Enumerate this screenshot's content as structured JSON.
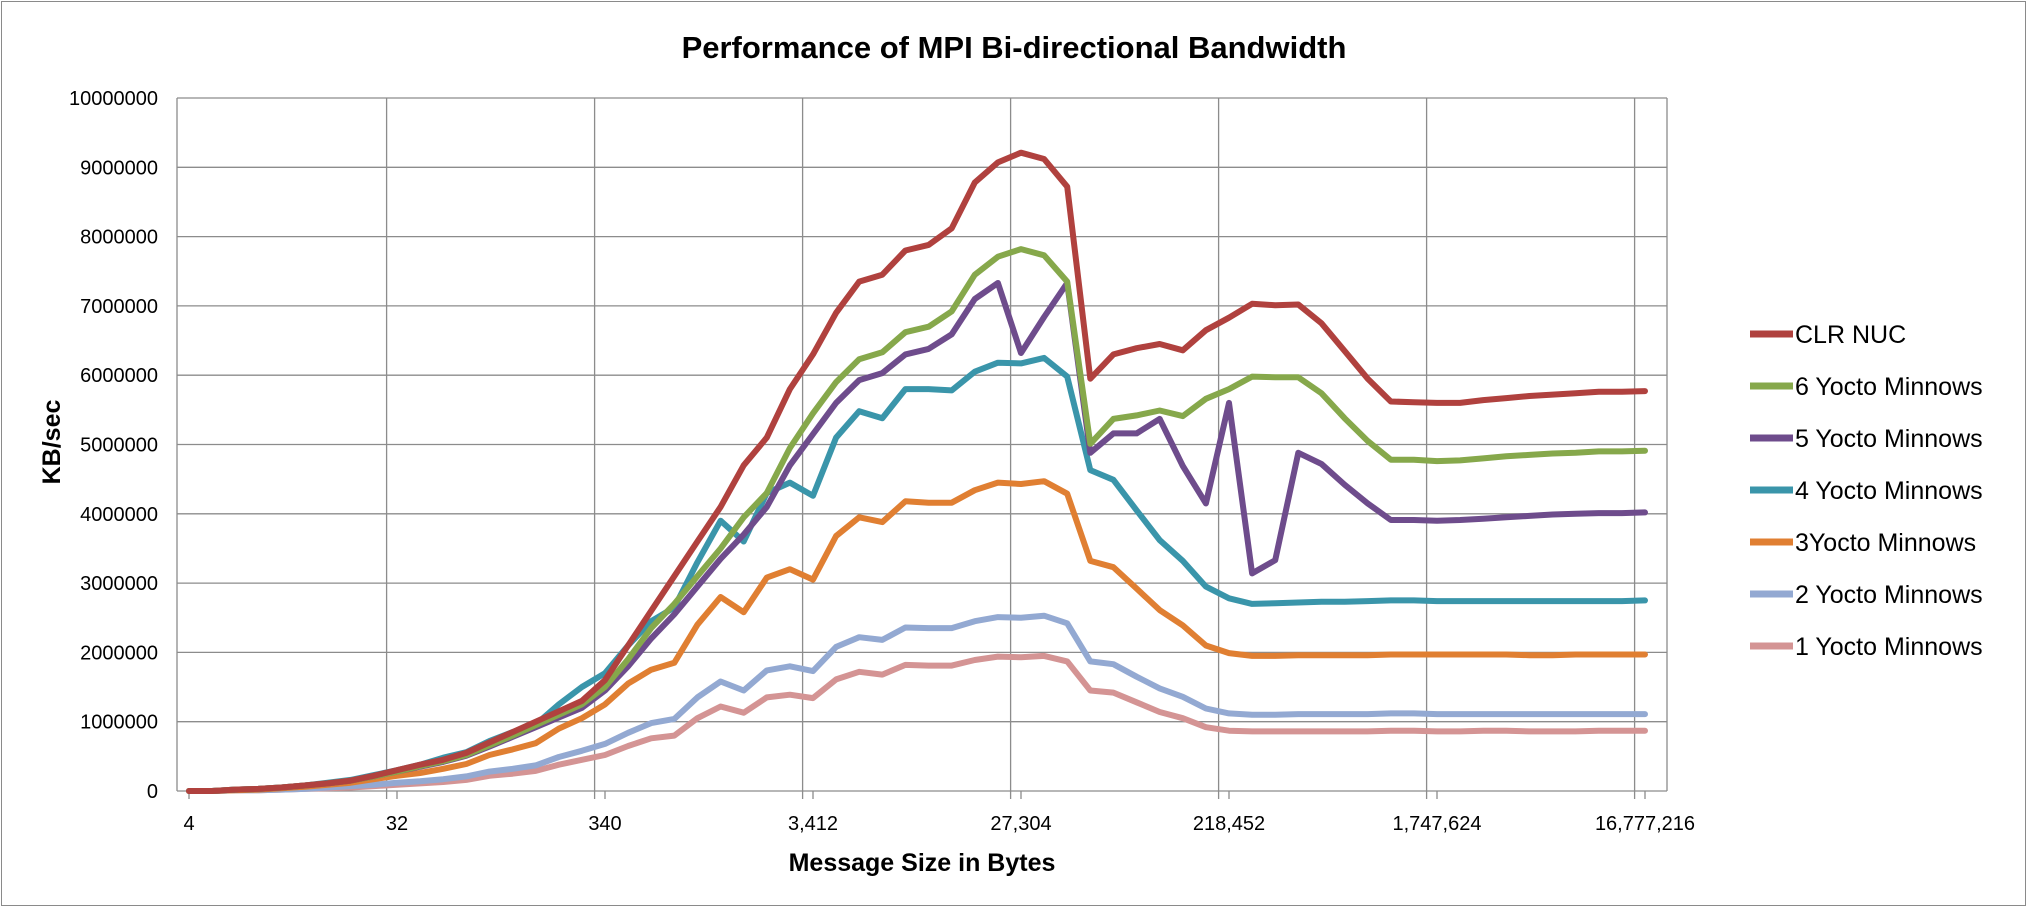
{
  "chart_data": {
    "type": "line",
    "title": "Performance of MPI Bi-directional Bandwidth",
    "xlabel": "Message Size in Bytes",
    "ylabel": "KB/sec",
    "ylim": [
      0,
      10000000
    ],
    "yticks": [
      "0",
      "1000000",
      "2000000",
      "3000000",
      "4000000",
      "5000000",
      "6000000",
      "7000000",
      "8000000",
      "9000000",
      "10000000"
    ],
    "xtick_labels": [
      "4",
      "32",
      "340",
      "3,412",
      "27,304",
      "218,452",
      "1,747,624",
      "16,777,216"
    ],
    "grid": true,
    "legend_position": "right",
    "colors": {
      "CLR NUC": "#b0413e",
      "6 Yocto Minnows": "#86a84b",
      "5 Yocto Minnows": "#6e4c8c",
      "4 Yocto Minnows": "#3a95aa",
      "3Yocto Minnows": "#e07f32",
      "2 Yocto Minnows": "#93a9d2",
      "1 Yocto Minnows": "#d49494"
    },
    "series": [
      {
        "name": "CLR NUC",
        "values": [
          0,
          0,
          20000,
          30000,
          50000,
          80000,
          110000,
          150000,
          220000,
          300000,
          380000,
          450000,
          550000,
          700000,
          850000,
          1000000,
          1150000,
          1300000,
          1600000,
          2100000,
          2600000,
          3100000,
          3600000,
          4100000,
          4700000,
          5100000,
          5800000,
          6300000,
          6900000,
          7350000,
          7450000,
          7800000,
          7880000,
          8120000,
          8780000,
          9070000,
          9210000,
          9120000,
          8720000,
          5950000,
          6300000,
          6390000,
          6450000,
          6360000,
          6650000,
          6830000,
          7030000,
          7010000,
          7020000,
          6750000,
          6350000,
          5950000,
          5620000,
          5610000,
          5600000,
          5600000,
          5640000,
          5670000,
          5700000,
          5720000,
          5740000,
          5760000,
          5760000,
          5770000
        ]
      },
      {
        "name": "6 Yocto Minnows",
        "values": [
          0,
          0,
          20000,
          30000,
          50000,
          80000,
          110000,
          150000,
          210000,
          280000,
          360000,
          430000,
          520000,
          660000,
          800000,
          950000,
          1100000,
          1250000,
          1500000,
          1900000,
          2350000,
          2700000,
          3100000,
          3500000,
          3950000,
          4300000,
          4950000,
          5450000,
          5900000,
          6230000,
          6330000,
          6620000,
          6700000,
          6920000,
          7450000,
          7710000,
          7820000,
          7730000,
          7350000,
          5010000,
          5370000,
          5420000,
          5490000,
          5410000,
          5660000,
          5800000,
          5980000,
          5970000,
          5970000,
          5740000,
          5380000,
          5050000,
          4780000,
          4780000,
          4760000,
          4770000,
          4800000,
          4830000,
          4850000,
          4870000,
          4880000,
          4900000,
          4900000,
          4910000
        ]
      },
      {
        "name": "5 Yocto Minnows",
        "values": [
          0,
          0,
          20000,
          30000,
          50000,
          80000,
          110000,
          150000,
          210000,
          280000,
          350000,
          420000,
          510000,
          640000,
          780000,
          920000,
          1060000,
          1200000,
          1450000,
          1800000,
          2200000,
          2550000,
          2950000,
          3350000,
          3700000,
          4100000,
          4700000,
          5150000,
          5600000,
          5930000,
          6030000,
          6300000,
          6380000,
          6590000,
          7100000,
          7330000,
          6320000,
          6840000,
          7330000,
          4880000,
          5160000,
          5160000,
          5370000,
          4690000,
          4150000,
          5600000,
          3140000,
          3330000,
          4880000,
          4720000,
          4420000,
          4150000,
          3910000,
          3910000,
          3900000,
          3910000,
          3930000,
          3950000,
          3970000,
          3990000,
          4000000,
          4010000,
          4010000,
          4020000
        ]
      },
      {
        "name": "4 Yocto Minnows",
        "values": [
          0,
          0,
          20000,
          30000,
          50000,
          80000,
          120000,
          160000,
          230000,
          300000,
          380000,
          480000,
          560000,
          720000,
          850000,
          960000,
          1250000,
          1500000,
          1700000,
          2100000,
          2450000,
          2650000,
          3300000,
          3900000,
          3600000,
          4300000,
          4450000,
          4260000,
          5100000,
          5480000,
          5380000,
          5800000,
          5800000,
          5780000,
          6050000,
          6180000,
          6170000,
          6250000,
          5980000,
          4630000,
          4490000,
          4050000,
          3620000,
          3320000,
          2950000,
          2780000,
          2700000,
          2710000,
          2720000,
          2730000,
          2730000,
          2740000,
          2750000,
          2750000,
          2740000,
          2740000,
          2740000,
          2740000,
          2740000,
          2740000,
          2740000,
          2740000,
          2740000,
          2750000
        ]
      },
      {
        "name": "3Yocto Minnows",
        "values": [
          0,
          0,
          10000,
          20000,
          40000,
          60000,
          90000,
          120000,
          170000,
          220000,
          260000,
          320000,
          390000,
          520000,
          600000,
          690000,
          900000,
          1050000,
          1250000,
          1550000,
          1750000,
          1850000,
          2400000,
          2800000,
          2580000,
          3080000,
          3200000,
          3050000,
          3680000,
          3950000,
          3880000,
          4180000,
          4160000,
          4160000,
          4340000,
          4450000,
          4430000,
          4470000,
          4290000,
          3320000,
          3230000,
          2920000,
          2610000,
          2390000,
          2100000,
          1990000,
          1950000,
          1950000,
          1960000,
          1960000,
          1960000,
          1960000,
          1970000,
          1970000,
          1970000,
          1970000,
          1970000,
          1970000,
          1960000,
          1960000,
          1970000,
          1970000,
          1970000,
          1970000
        ]
      },
      {
        "name": "2 Yocto Minnows",
        "values": [
          0,
          0,
          10000,
          10000,
          20000,
          30000,
          50000,
          70000,
          90000,
          120000,
          140000,
          170000,
          210000,
          280000,
          320000,
          370000,
          490000,
          580000,
          680000,
          840000,
          980000,
          1040000,
          1350000,
          1580000,
          1450000,
          1740000,
          1800000,
          1730000,
          2080000,
          2220000,
          2180000,
          2360000,
          2350000,
          2350000,
          2450000,
          2510000,
          2500000,
          2530000,
          2420000,
          1870000,
          1830000,
          1650000,
          1480000,
          1360000,
          1190000,
          1120000,
          1100000,
          1100000,
          1110000,
          1110000,
          1110000,
          1110000,
          1120000,
          1120000,
          1110000,
          1110000,
          1110000,
          1110000,
          1110000,
          1110000,
          1110000,
          1110000,
          1110000,
          1110000
        ]
      },
      {
        "name": "1 Yocto Minnows",
        "values": [
          0,
          0,
          10000,
          10000,
          20000,
          30000,
          40000,
          50000,
          70000,
          90000,
          110000,
          130000,
          160000,
          220000,
          250000,
          290000,
          380000,
          450000,
          520000,
          650000,
          760000,
          800000,
          1050000,
          1220000,
          1130000,
          1350000,
          1390000,
          1340000,
          1610000,
          1720000,
          1680000,
          1820000,
          1810000,
          1810000,
          1890000,
          1940000,
          1930000,
          1950000,
          1870000,
          1450000,
          1420000,
          1280000,
          1140000,
          1050000,
          920000,
          870000,
          860000,
          860000,
          860000,
          860000,
          860000,
          860000,
          870000,
          870000,
          860000,
          860000,
          870000,
          870000,
          860000,
          860000,
          860000,
          870000,
          870000,
          870000
        ]
      }
    ]
  }
}
